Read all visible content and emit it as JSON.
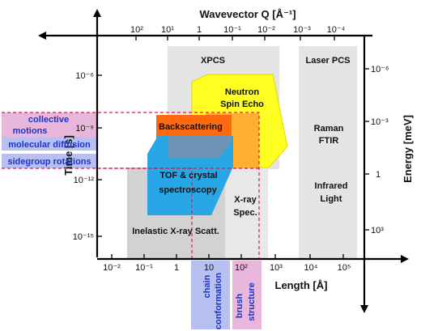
{
  "axes": {
    "top_title": "Wavevector Q [Å⁻¹]",
    "top_ticks": [
      "10²",
      "10¹",
      "1",
      "10⁻¹",
      "10⁻²",
      "10⁻³",
      "10⁻⁴"
    ],
    "left_title": "Time [s]",
    "left_ticks": [
      "10⁻⁶",
      "10⁻⁹",
      "10⁻¹²",
      "10⁻¹⁵"
    ],
    "right_title": "Energy [meV]",
    "right_ticks": [
      "10⁻⁶",
      "10⁻³",
      "1",
      "10³"
    ],
    "bottom_title": "Length [Å]",
    "bottom_ticks": [
      "10⁻²",
      "10⁻¹",
      "1",
      "10",
      "10²",
      "10³",
      "10⁴",
      "10⁵"
    ]
  },
  "techniques": {
    "xpcs": "XPCS",
    "laser_pcs": "Laser PCS",
    "neutron_spin_echo": [
      "Neutron",
      "Spin Echo"
    ],
    "backscattering": "Backscattering",
    "raman_ftir": [
      "Raman",
      "FTIR"
    ],
    "tof": [
      "TOF & crystal",
      "spectroscopy"
    ],
    "infrared": [
      "Infrared",
      "Light"
    ],
    "xray_spec": [
      "X-ray",
      "Spec."
    ],
    "inelastic_xray": "Inelastic X-ray Scatt."
  },
  "processes": {
    "collective": [
      "collective",
      "motions"
    ],
    "molecular_diffusion": "molecular diffusion",
    "sidegroup_rotations": "sidegroup rotations",
    "chain_conformation": [
      "chain",
      "conformation"
    ],
    "brush_structure": [
      "brush",
      "structure"
    ]
  },
  "colors": {
    "grey_region": "#e4e4e4",
    "dark_grey_region": "#d2d2d2",
    "yellow": "#ffff22",
    "orange": "#ff6a10",
    "light_orange": "#ffb030",
    "blue": "#29a6e6",
    "slate": "#6d93b7",
    "pink": "#e9b7dc",
    "lavender": "#b8c0f2",
    "dashed_red": "#e8134f"
  }
}
